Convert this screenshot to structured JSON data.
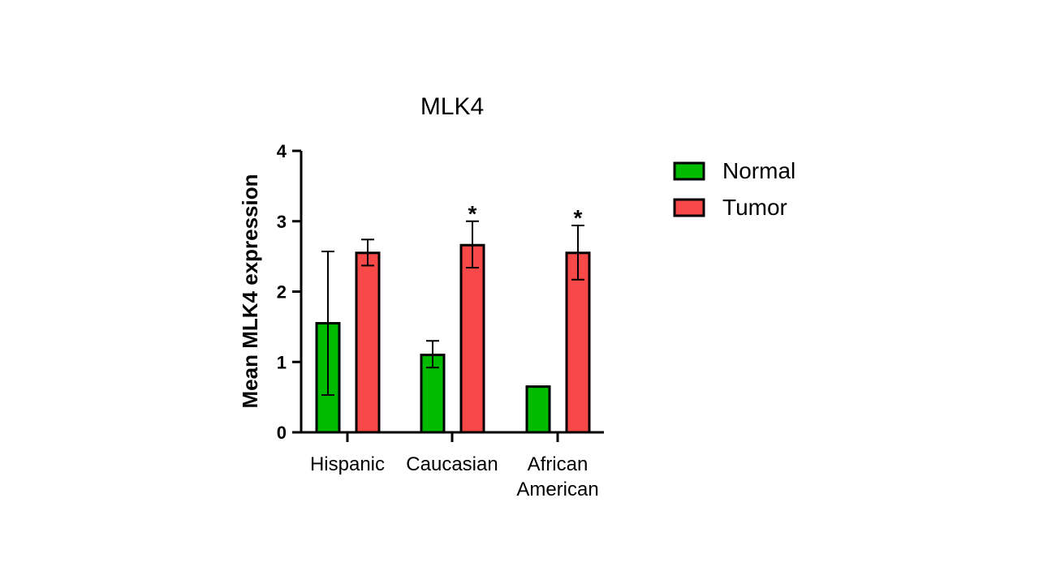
{
  "chart_data": {
    "type": "bar",
    "title": "MLK4",
    "xlabel": "",
    "ylabel": "Mean MLK4 expression",
    "ylim": [
      0,
      4
    ],
    "yticks": [
      "0",
      "1",
      "2",
      "3",
      "4"
    ],
    "grid": false,
    "legend_position": "right",
    "categories": [
      [
        "Hispanic"
      ],
      [
        "Caucasian"
      ],
      [
        "African",
        "American"
      ]
    ],
    "series": [
      {
        "name": "Normal",
        "color": "#00bb00",
        "values": [
          1.55,
          1.1,
          0.65
        ],
        "err_low": [
          0.53,
          0.92,
          null
        ],
        "err_high": [
          2.57,
          1.3,
          null
        ]
      },
      {
        "name": "Tumor",
        "color": "#f94848",
        "values": [
          2.55,
          2.66,
          2.55
        ],
        "err_low": [
          2.37,
          2.34,
          2.17
        ],
        "err_high": [
          2.74,
          3.0,
          2.94
        ]
      }
    ],
    "annotations": [
      {
        "series": 1,
        "category": 1,
        "text": "*"
      },
      {
        "series": 1,
        "category": 2,
        "text": "*"
      }
    ]
  }
}
